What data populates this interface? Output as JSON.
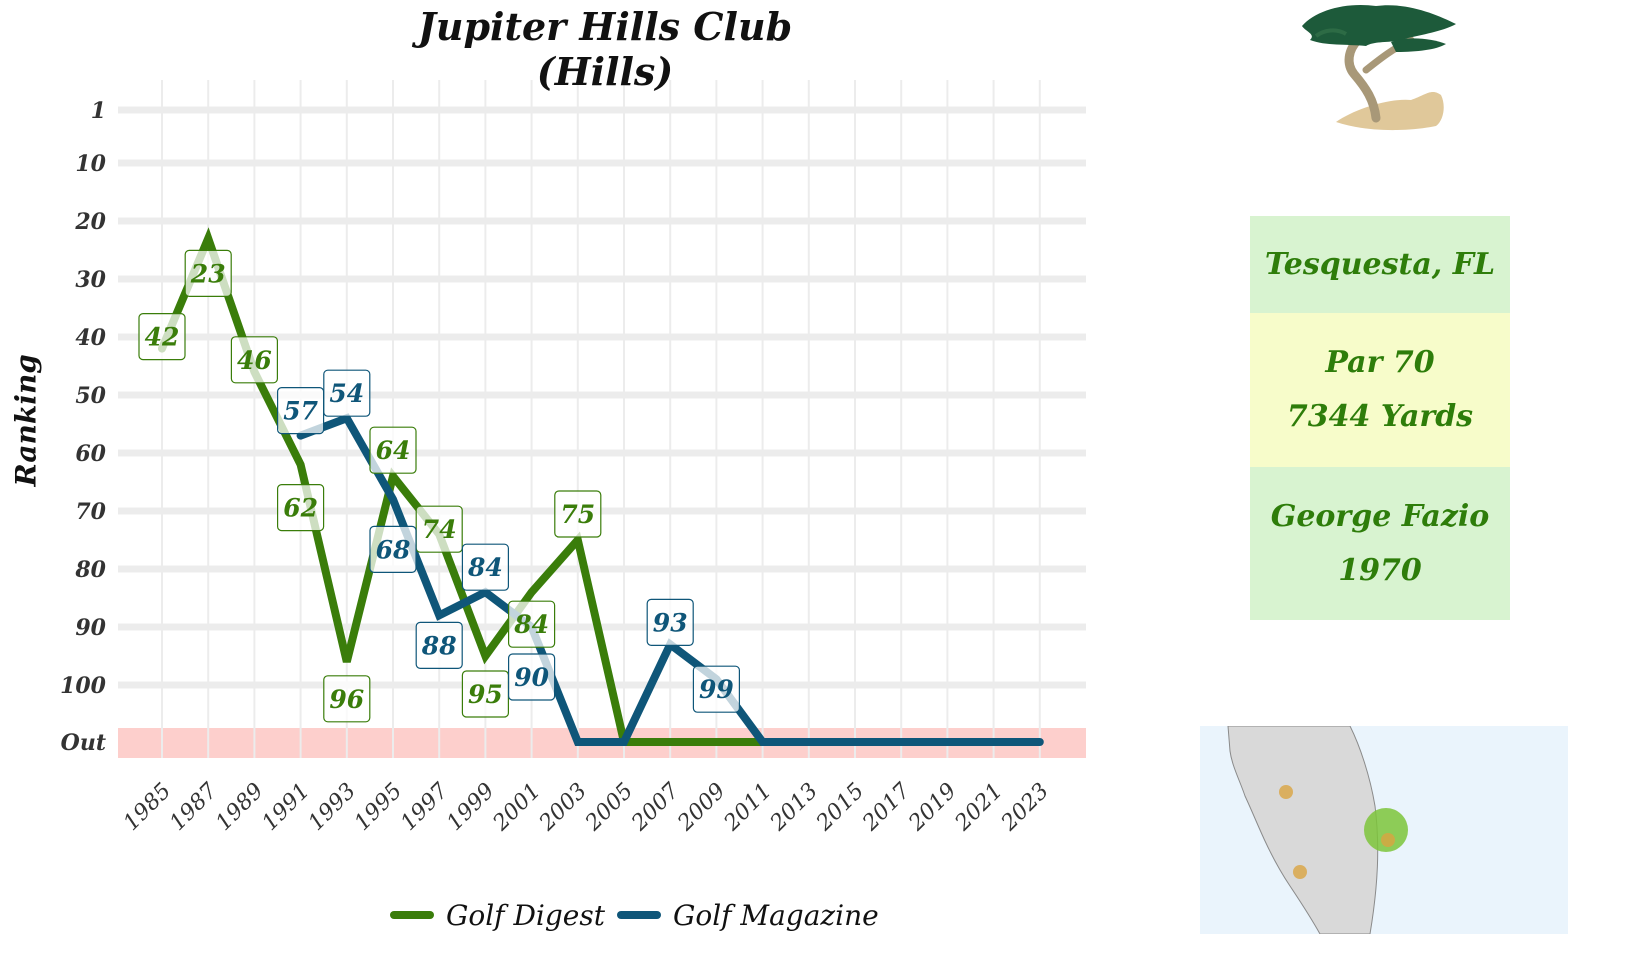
{
  "title": "Jupiter Hills Club (Hills)",
  "ylabel": "Ranking",
  "info": {
    "location": "Tesquesta, FL",
    "par": "Par 70",
    "yards": "7344 Yards",
    "architect": "George Fazio",
    "year": "1970"
  },
  "colors": {
    "golf_digest": "#3a7d0a",
    "golf_magazine": "#0f5679",
    "out_band": "#fdcfcc",
    "grid": "#ececec"
  },
  "chart_data": {
    "type": "line",
    "title": "Jupiter Hills Club (Hills)",
    "xlabel": "",
    "ylabel": "Ranking",
    "x_ticks": [
      "1985",
      "1987",
      "1989",
      "1991",
      "1993",
      "1995",
      "1997",
      "1999",
      "2001",
      "2003",
      "2005",
      "2007",
      "2009",
      "2011",
      "2013",
      "2015",
      "2017",
      "2019",
      "2021",
      "2023"
    ],
    "y_ticks": [
      "1",
      "10",
      "20",
      "30",
      "40",
      "50",
      "60",
      "70",
      "80",
      "90",
      "100",
      "Out"
    ],
    "y_reversed": true,
    "grid": true,
    "legend": "bottom",
    "series": [
      {
        "name": "Golf Digest",
        "x": [
          1985,
          1987,
          1989,
          1991,
          1993,
          1995,
          1997,
          1999,
          2001,
          2003,
          2005,
          2007,
          2009,
          2011
        ],
        "y": [
          42,
          23,
          46,
          62,
          96,
          64,
          74,
          95,
          84,
          75,
          "Out",
          "Out",
          "Out",
          "Out"
        ],
        "labels": [
          "42",
          "23",
          "46",
          "62",
          "96",
          "64",
          "74",
          "95",
          "84",
          "75"
        ]
      },
      {
        "name": "Golf Magazine",
        "x": [
          1991,
          1993,
          1995,
          1997,
          1999,
          2001,
          2003,
          2005,
          2007,
          2009,
          2011,
          2013,
          2015,
          2017,
          2019,
          2021,
          2023
        ],
        "y": [
          57,
          54,
          68,
          88,
          84,
          90,
          "Out",
          "Out",
          93,
          99,
          "Out",
          "Out",
          "Out",
          "Out",
          "Out",
          "Out",
          "Out"
        ],
        "labels": [
          "57",
          "54",
          "68",
          "88",
          "84",
          "90",
          "93",
          "99"
        ]
      }
    ]
  }
}
